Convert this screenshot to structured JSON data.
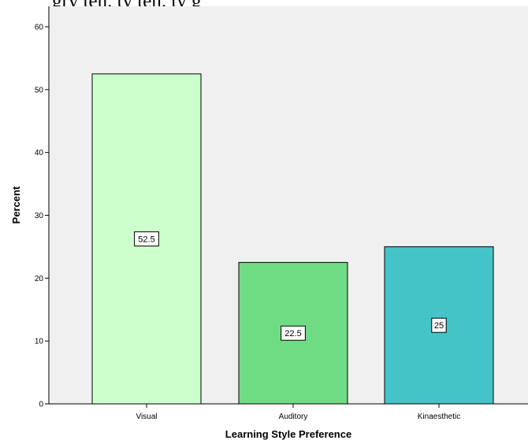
{
  "top_fragment": "gry  ten. ty    ten.      ty g",
  "chart_data": {
    "type": "bar",
    "title": "",
    "xlabel": "Learning Style Preference",
    "ylabel": "Percent",
    "categories": [
      "Visual",
      "Auditory",
      "Kinaesthetic"
    ],
    "values": [
      52.5,
      22.5,
      25
    ],
    "data_labels": [
      "52.5",
      "22.5",
      "25"
    ],
    "ylim": [
      0,
      60
    ],
    "yticks": [
      0,
      10,
      20,
      30,
      40,
      50,
      60
    ],
    "grid": false,
    "legend": "none",
    "colors": {
      "background": "#f0f0f0",
      "bars": [
        "#ccffcc",
        "#6fdc83",
        "#44c4c6"
      ],
      "bar_stroke": "#000000"
    }
  }
}
